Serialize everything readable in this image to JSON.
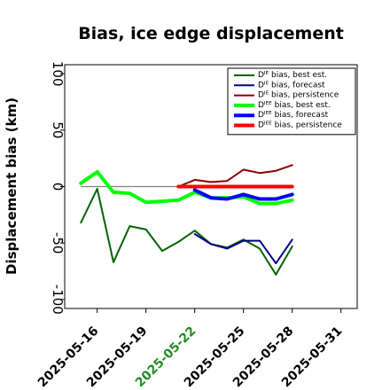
{
  "chart_data": {
    "type": "line",
    "title": "Bias, ice edge displacement",
    "ylabel": "Displacement bias (km)",
    "xlabel": "",
    "ylim": [
      -108,
      108
    ],
    "xlim": [
      "2025-05-14",
      "2025-06-01"
    ],
    "y_ticks": [
      100,
      50,
      0,
      -50,
      -100
    ],
    "x_ticks": [
      {
        "label": "2025-05-16",
        "color": "#000000"
      },
      {
        "label": "2025-05-19",
        "color": "#000000"
      },
      {
        "label": "2025-05-22",
        "color": "#228b22"
      },
      {
        "label": "2025-05-25",
        "color": "#000000"
      },
      {
        "label": "2025-05-28",
        "color": "#000000"
      },
      {
        "label": "2025-05-31",
        "color": "#000000"
      }
    ],
    "reference_line": {
      "y": 0,
      "color": "#808080"
    },
    "legend_position": "top-right",
    "series": [
      {
        "name": "Dᴵᴱ bias, best est.",
        "color": "#006400",
        "width": 2,
        "x": [
          "2025-05-15",
          "2025-05-16",
          "2025-05-17",
          "2025-05-18",
          "2025-05-19",
          "2025-05-20",
          "2025-05-21",
          "2025-05-22",
          "2025-05-23",
          "2025-05-24",
          "2025-05-25",
          "2025-05-26",
          "2025-05-27",
          "2025-05-28"
        ],
        "y": [
          -32,
          -2,
          -67,
          -35,
          -38,
          -57,
          -49,
          -39,
          -51,
          -54,
          -47,
          -55,
          -78,
          -53
        ]
      },
      {
        "name": "Dᴵᴱ bias, forecast",
        "color": "#00008b",
        "width": 2,
        "x": [
          "2025-05-22",
          "2025-05-23",
          "2025-05-24",
          "2025-05-25",
          "2025-05-26",
          "2025-05-27",
          "2025-05-28"
        ],
        "y": [
          -42,
          -51,
          -55,
          -48,
          -48,
          -68,
          -47
        ]
      },
      {
        "name": "Dᴵᴱ bias, persistence",
        "color": "#8b0000",
        "width": 2,
        "x": [
          "2025-05-21",
          "2025-05-22",
          "2025-05-23",
          "2025-05-24",
          "2025-05-25",
          "2025-05-26",
          "2025-05-27",
          "2025-05-28"
        ],
        "y": [
          0,
          6,
          4,
          5,
          15,
          12,
          14,
          19
        ]
      },
      {
        "name": "Dᴵᴱᴱ bias, best est.",
        "color": "#00ff00",
        "width": 4,
        "x": [
          "2025-05-15",
          "2025-05-16",
          "2025-05-17",
          "2025-05-18",
          "2025-05-19",
          "2025-05-20",
          "2025-05-21",
          "2025-05-22",
          "2025-05-23",
          "2025-05-24",
          "2025-05-25",
          "2025-05-26",
          "2025-05-27",
          "2025-05-28"
        ],
        "y": [
          3,
          13,
          -5,
          -6,
          -14,
          -13,
          -12,
          -5,
          -10,
          -10,
          -9,
          -15,
          -15,
          -12
        ]
      },
      {
        "name": "Dᴵᴱᴱ bias, forecast",
        "color": "#0000ff",
        "width": 4,
        "x": [
          "2025-05-22",
          "2025-05-23",
          "2025-05-24",
          "2025-05-25",
          "2025-05-26",
          "2025-05-27",
          "2025-05-28"
        ],
        "y": [
          -3,
          -10,
          -11,
          -7,
          -11,
          -11,
          -7
        ]
      },
      {
        "name": "Dᴵᴱᴱ bias, persistence",
        "color": "#ff0000",
        "width": 4,
        "x": [
          "2025-05-21",
          "2025-05-22",
          "2025-05-23",
          "2025-05-24",
          "2025-05-25",
          "2025-05-26",
          "2025-05-27",
          "2025-05-28"
        ],
        "y": [
          0,
          0,
          0,
          0,
          0,
          0,
          0,
          0
        ]
      }
    ]
  }
}
